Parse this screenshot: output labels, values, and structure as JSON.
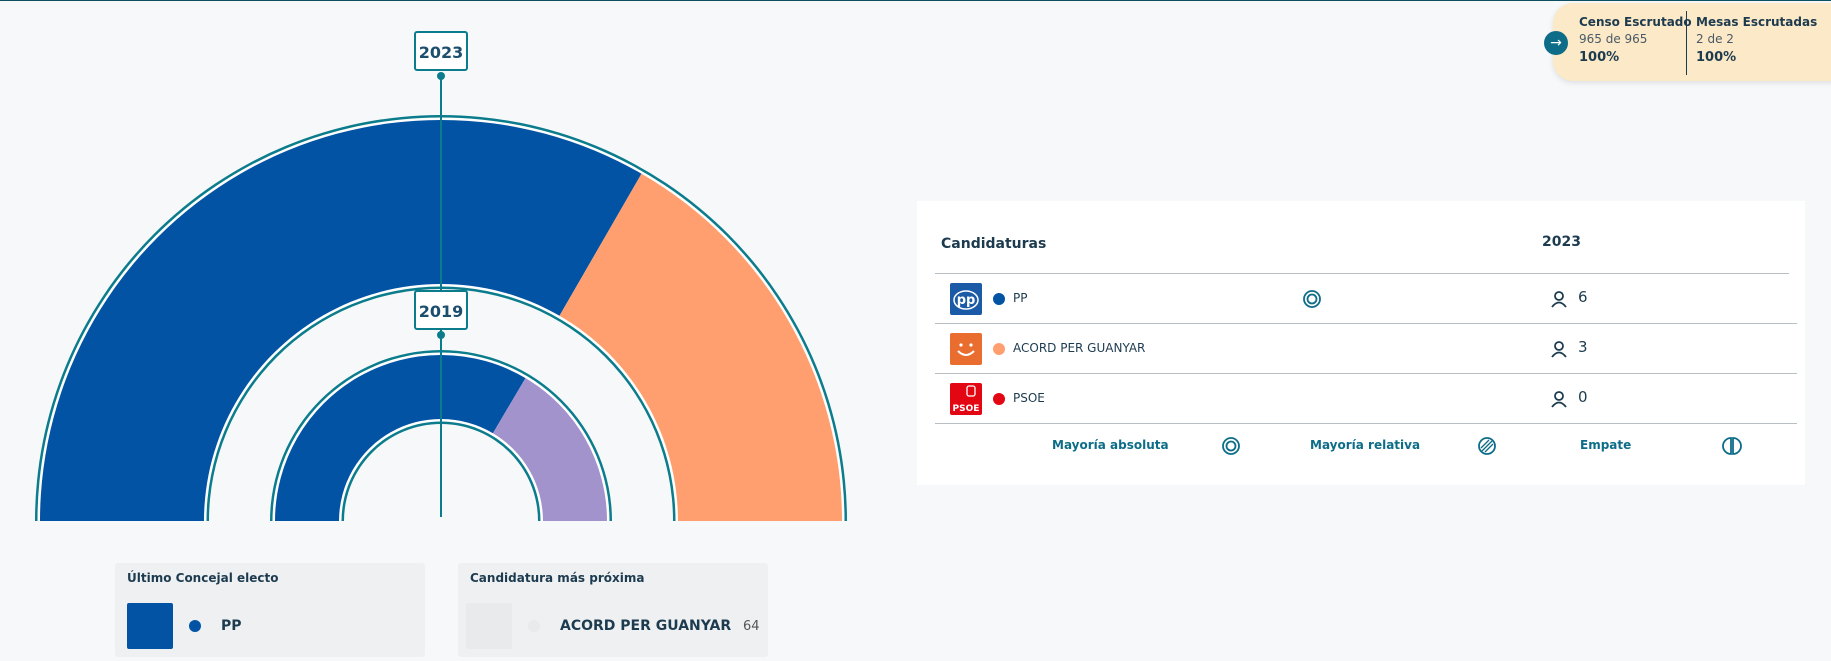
{
  "scrutiny": {
    "census": {
      "title": "Censo Escrutado",
      "detail": "965 de 965",
      "percent": "100%"
    },
    "tables": {
      "title": "Mesas Escrutadas",
      "detail": "2 de 2",
      "percent": "100%"
    }
  },
  "chart": {
    "outer_year": "2023",
    "inner_year": "2019",
    "outer_seats": [
      {
        "party": "PP",
        "seats": 6,
        "color": "#0353a4"
      },
      {
        "party": "ACORD PER GUANYAR",
        "seats": 3,
        "color": "#ff9f6f"
      }
    ],
    "inner_shares": [
      {
        "party": "PP",
        "fraction": 0.67,
        "color": "#0353a4"
      },
      {
        "party": "",
        "fraction": 0.33,
        "color": "#a393cc"
      }
    ],
    "ring_color": "#0b7c8c"
  },
  "table": {
    "header_candidates": "Candidaturas",
    "header_year": "2023",
    "rows": [
      {
        "name": "PP",
        "seats": "6",
        "color": "#0353a4",
        "logo_text": "pp",
        "logo_bg": "#1b5aa6",
        "majority": "absolute"
      },
      {
        "name": "ACORD PER GUANYAR",
        "seats": "3",
        "color": "#ff9f6f",
        "logo_text": "☺",
        "logo_bg": "#e86d2f",
        "majority": ""
      },
      {
        "name": "PSOE",
        "seats": "0",
        "color": "#e30613",
        "logo_text": "PSOE",
        "logo_bg": "#e30613",
        "majority": ""
      }
    ],
    "legend": {
      "absolute": "Mayoría absoluta",
      "relative": "Mayoría relativa",
      "tie": "Empate"
    }
  },
  "last_elected": {
    "label": "Último Concejal electo",
    "party": "PP",
    "color": "#0353a4"
  },
  "next_candidate": {
    "label": "Candidatura más próxima",
    "party": "ACORD PER GUANYAR",
    "votes": "64"
  }
}
